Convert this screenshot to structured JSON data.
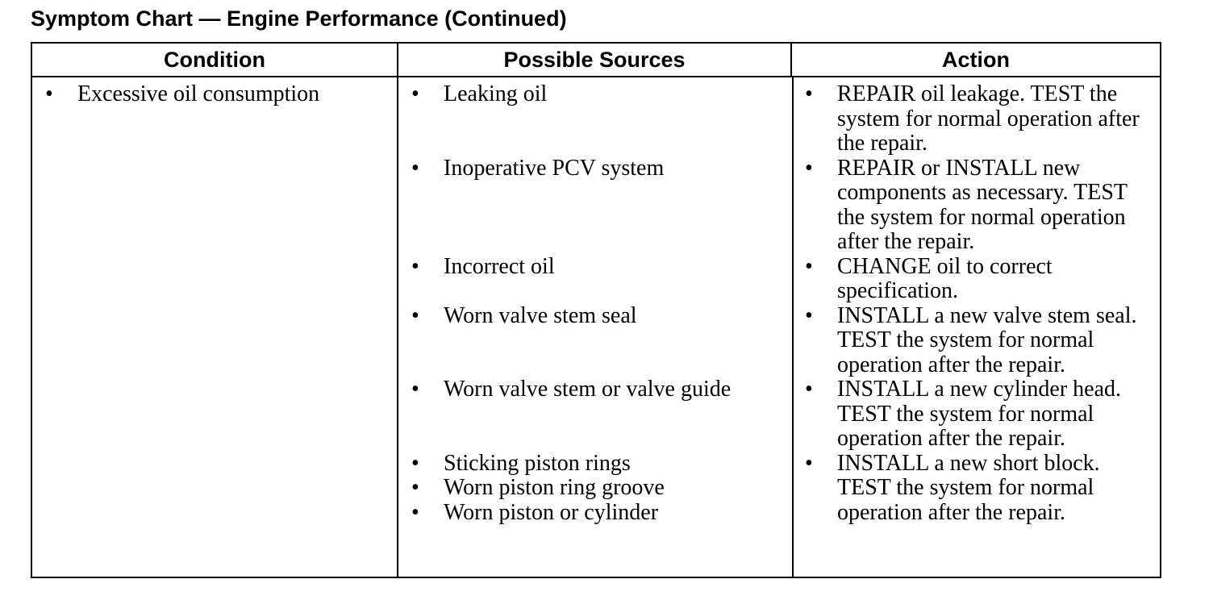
{
  "header": {
    "title": "Symptom Chart — Engine Performance (Continued)"
  },
  "table": {
    "columns": [
      "Condition",
      "Possible Sources",
      "Action"
    ],
    "condition": "Excessive oil consumption",
    "groups": [
      {
        "sources": [
          "Leaking oil"
        ],
        "action": "REPAIR oil leakage. TEST the system for normal operation after the repair."
      },
      {
        "sources": [
          "Inoperative PCV system"
        ],
        "action": "REPAIR or INSTALL new components as necessary. TEST the system for normal operation after the repair."
      },
      {
        "sources": [
          "Incorrect oil"
        ],
        "action": "CHANGE oil to correct specification."
      },
      {
        "sources": [
          "Worn valve stem seal"
        ],
        "action": "INSTALL a new valve stem seal. TEST the system for normal operation after the repair."
      },
      {
        "sources": [
          "Worn valve stem or valve guide"
        ],
        "action": "INSTALL a new cylinder head. TEST the system for normal operation after the repair."
      },
      {
        "sources": [
          "Sticking piston rings",
          "Worn piston ring groove",
          "Worn piston or cylinder"
        ],
        "action": "INSTALL a new short block. TEST the system for normal operation after the repair."
      }
    ]
  }
}
